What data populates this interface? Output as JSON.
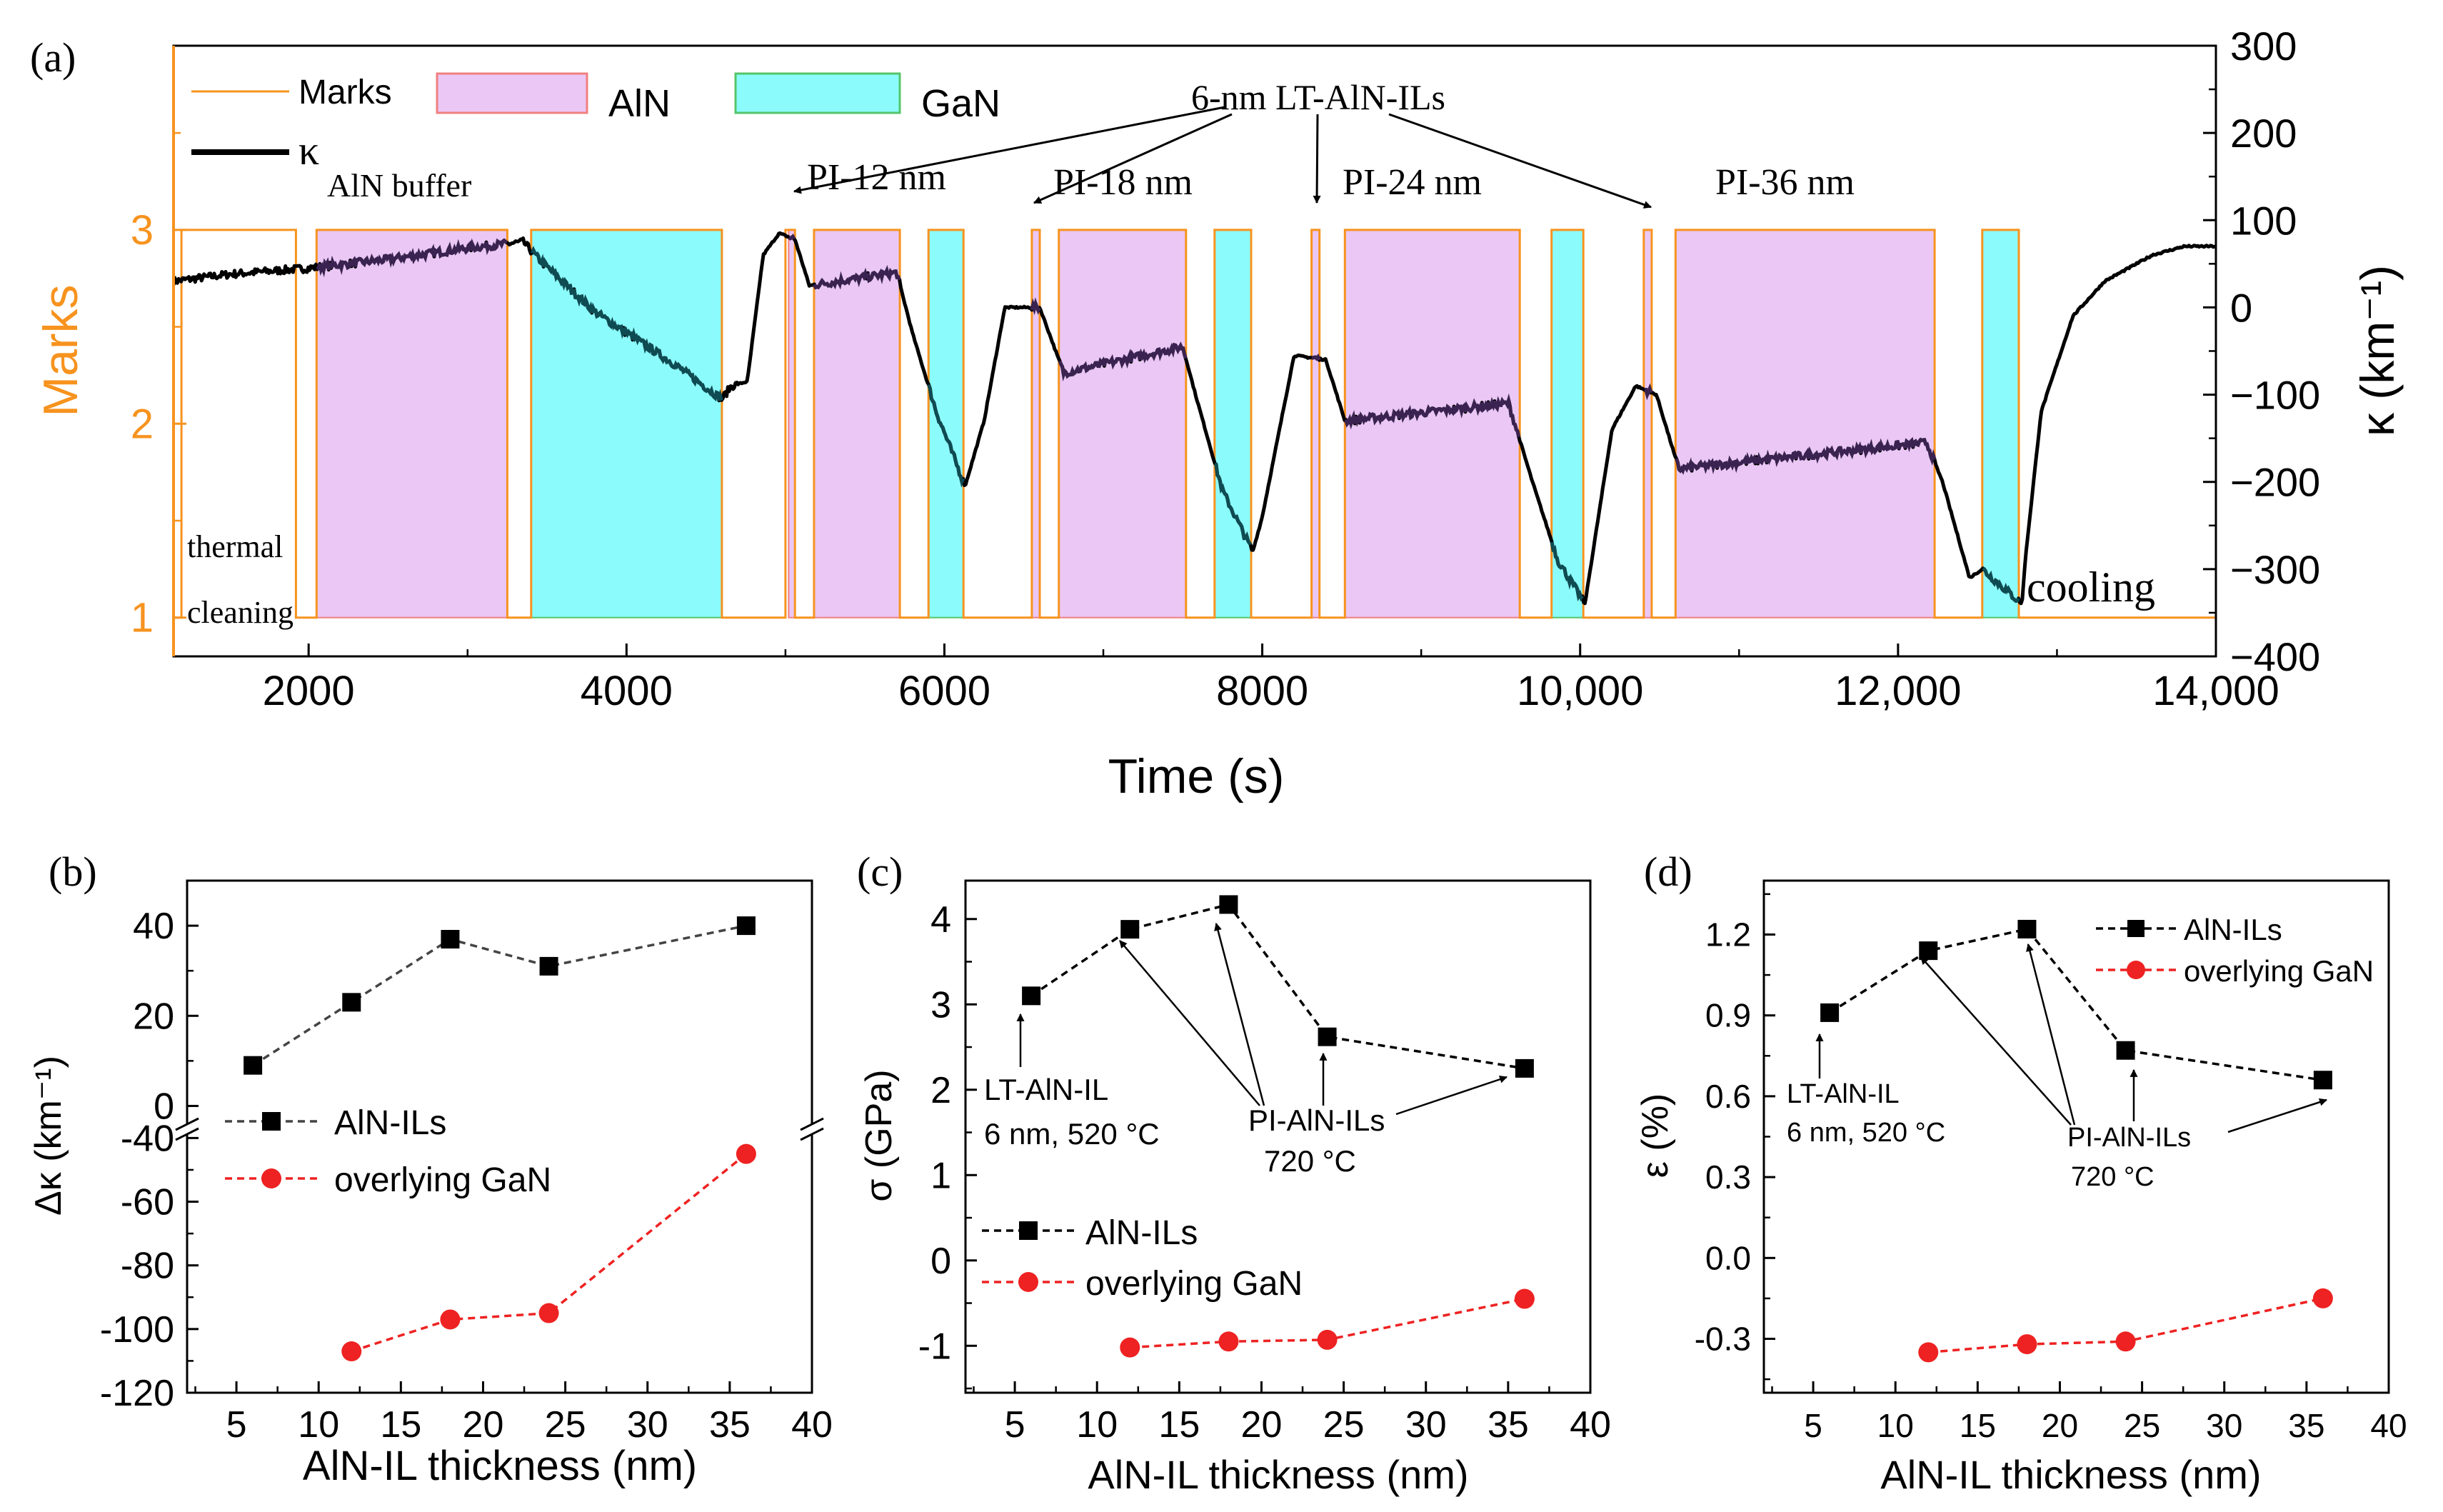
{
  "colors": {
    "orange": "#f7931e",
    "aln_fill": "#eac7f5",
    "aln_edge": "#f08080",
    "gan_fill": "#8cfbfb",
    "gan_edge": "#55c46a",
    "black": "#000000",
    "grey_series": "#444444",
    "red_series": "#ee2222",
    "in_aln": "#3a2350",
    "in_gan": "#0f4b52"
  },
  "chart_data": [
    {
      "id": "a",
      "type": "line",
      "panel_label": "(a)",
      "xlabel": "Time (s)",
      "ylabel_left": "Marks",
      "ylabel_right": "κ (km⁻¹)",
      "xlim": [
        1150,
        14000
      ],
      "ylim_left": [
        0.8,
        3.95
      ],
      "ylim_right": [
        -400,
        300
      ],
      "x_ticks": [
        2000,
        4000,
        6000,
        8000,
        10000,
        12000,
        14000
      ],
      "x_tick_labels": [
        "2000",
        "4000",
        "6000",
        "8000",
        "10,000",
        "12,000",
        "14,000"
      ],
      "y_left_ticks": [
        1,
        2,
        3
      ],
      "y_left_tick_labels": [
        "1",
        "2",
        "3"
      ],
      "y_right_ticks": [
        300,
        200,
        100,
        0,
        -100,
        -200,
        -300,
        -400
      ],
      "y_right_tick_labels": [
        "300",
        "200",
        "100",
        "0",
        "−100",
        "−200",
        "−300",
        "−400"
      ],
      "legend": {
        "marks": "Marks",
        "aln": "AlN",
        "gan": "GaN",
        "kappa": "κ"
      },
      "regions_aln": [
        [
          2050,
          3250
        ],
        [
          5020,
          5060
        ],
        [
          5180,
          5720
        ],
        [
          6550,
          6600
        ],
        [
          6720,
          7520
        ],
        [
          8310,
          8360
        ],
        [
          8520,
          9620
        ],
        [
          10400,
          10450
        ],
        [
          10600,
          12230
        ]
      ],
      "regions_gan": [
        [
          3400,
          4600
        ],
        [
          5900,
          6120
        ],
        [
          7700,
          7930
        ],
        [
          9820,
          10020
        ],
        [
          12530,
          12760
        ]
      ],
      "marks_steps": [
        [
          1150,
          1
        ],
        [
          1200,
          1
        ],
        [
          1200,
          3
        ],
        [
          1920,
          3
        ],
        [
          1920,
          1
        ],
        [
          2050,
          1
        ],
        [
          2050,
          3
        ],
        [
          3250,
          3
        ],
        [
          3250,
          1
        ],
        [
          3400,
          1
        ],
        [
          3400,
          3
        ],
        [
          4600,
          3
        ],
        [
          4600,
          1
        ],
        [
          5000,
          1
        ],
        [
          5000,
          3
        ],
        [
          5060,
          3
        ],
        [
          5060,
          1
        ],
        [
          5180,
          1
        ],
        [
          5180,
          3
        ],
        [
          5720,
          3
        ],
        [
          5720,
          1
        ],
        [
          5900,
          1
        ],
        [
          5900,
          3
        ],
        [
          6120,
          3
        ],
        [
          6120,
          1
        ],
        [
          6550,
          1
        ],
        [
          6550,
          3
        ],
        [
          6600,
          3
        ],
        [
          6600,
          1
        ],
        [
          6720,
          1
        ],
        [
          6720,
          3
        ],
        [
          7520,
          3
        ],
        [
          7520,
          1
        ],
        [
          7700,
          1
        ],
        [
          7700,
          3
        ],
        [
          7930,
          3
        ],
        [
          7930,
          1
        ],
        [
          8310,
          1
        ],
        [
          8310,
          3
        ],
        [
          8360,
          3
        ],
        [
          8360,
          1
        ],
        [
          8520,
          1
        ],
        [
          8520,
          3
        ],
        [
          9620,
          3
        ],
        [
          9620,
          1
        ],
        [
          9820,
          1
        ],
        [
          9820,
          3
        ],
        [
          10020,
          3
        ],
        [
          10020,
          1
        ],
        [
          10400,
          1
        ],
        [
          10400,
          3
        ],
        [
          10450,
          3
        ],
        [
          10450,
          1
        ],
        [
          10600,
          1
        ],
        [
          10600,
          3
        ],
        [
          12230,
          3
        ],
        [
          12230,
          1
        ],
        [
          12530,
          1
        ],
        [
          12530,
          3
        ],
        [
          12760,
          3
        ],
        [
          12760,
          1
        ],
        [
          14000,
          1
        ]
      ],
      "kappa_curve": [
        [
          1150,
          30
        ],
        [
          1500,
          38
        ],
        [
          2000,
          45
        ],
        [
          2500,
          55
        ],
        [
          3000,
          68
        ],
        [
          3350,
          75
        ],
        [
          3450,
          55
        ],
        [
          3800,
          -5
        ],
        [
          4300,
          -65
        ],
        [
          4600,
          -105
        ],
        [
          4660,
          -90
        ],
        [
          4760,
          -85
        ],
        [
          4860,
          60
        ],
        [
          4960,
          85
        ],
        [
          5060,
          78
        ],
        [
          5150,
          25
        ],
        [
          5700,
          40
        ],
        [
          5800,
          -30
        ],
        [
          5950,
          -120
        ],
        [
          6130,
          -205
        ],
        [
          6250,
          -130
        ],
        [
          6380,
          0
        ],
        [
          6600,
          0
        ],
        [
          6750,
          -75
        ],
        [
          7500,
          -45
        ],
        [
          7580,
          -100
        ],
        [
          7750,
          -210
        ],
        [
          7940,
          -280
        ],
        [
          8000,
          -240
        ],
        [
          8200,
          -55
        ],
        [
          8400,
          -60
        ],
        [
          8520,
          -130
        ],
        [
          9550,
          -110
        ],
        [
          9700,
          -200
        ],
        [
          9860,
          -290
        ],
        [
          10030,
          -340
        ],
        [
          10200,
          -140
        ],
        [
          10350,
          -90
        ],
        [
          10480,
          -100
        ],
        [
          10620,
          -185
        ],
        [
          12180,
          -155
        ],
        [
          12280,
          -200
        ],
        [
          12450,
          -310
        ],
        [
          12530,
          -300
        ],
        [
          12780,
          -340
        ],
        [
          12800,
          -290
        ],
        [
          12900,
          -120
        ],
        [
          13100,
          -10
        ],
        [
          13300,
          30
        ],
        [
          13600,
          60
        ],
        [
          13800,
          70
        ],
        [
          14000,
          70
        ]
      ],
      "annotations": {
        "thermal_1": "thermal",
        "thermal_2": "cleaning",
        "aln_buffer": "AlN buffer",
        "lt_label": "6-nm LT-AlN-ILs",
        "pi12": "PI-12 nm",
        "pi18": "PI-18 nm",
        "pi24": "PI-24 nm",
        "pi36": "PI-36 nm",
        "cooling": "cooling"
      }
    },
    {
      "id": "b",
      "type": "line",
      "panel_label": "(b)",
      "xlabel": "AlN-IL thickness (nm)",
      "ylabel": "Δκ (km⁻¹)",
      "xlim": [
        2,
        40
      ],
      "ylim_upper": [
        -5,
        50
      ],
      "ylim_lower": [
        -120,
        -37
      ],
      "x_ticks": [
        5,
        10,
        15,
        20,
        25,
        30,
        35,
        40
      ],
      "y_upper_ticks": [
        0,
        20,
        40
      ],
      "y_lower_ticks": [
        -40,
        -60,
        -80,
        -100,
        -120
      ],
      "y_lower_tick_labels": [
        "-40",
        "-60",
        "-80",
        "-100",
        "-120"
      ],
      "series": [
        {
          "name": "AlN-ILs",
          "x": [
            6,
            12,
            18,
            24,
            36
          ],
          "values": [
            9,
            23,
            37,
            31,
            40
          ]
        },
        {
          "name": "overlying GaN",
          "x": [
            12,
            18,
            24,
            36
          ],
          "values": [
            -107,
            -97,
            -95,
            -45
          ]
        }
      ]
    },
    {
      "id": "c",
      "type": "line",
      "panel_label": "(c)",
      "xlabel": "AlN-IL thickness (nm)",
      "ylabel": "σ (GPa)",
      "xlim": [
        2,
        40
      ],
      "ylim": [
        -1.55,
        4.45
      ],
      "x_ticks": [
        5,
        10,
        15,
        20,
        25,
        30,
        35,
        40
      ],
      "y_ticks": [
        -1,
        0,
        1,
        2,
        3,
        4
      ],
      "series": [
        {
          "name": "AlN-ILs",
          "x": [
            6,
            12,
            18,
            24,
            36
          ],
          "values": [
            3.1,
            3.88,
            4.17,
            2.62,
            2.25
          ]
        },
        {
          "name": "overlying GaN",
          "x": [
            12,
            18,
            24,
            36
          ],
          "values": [
            -1.02,
            -0.95,
            -0.93,
            -0.45
          ]
        }
      ],
      "annotations": {
        "lt_1": "LT-AlN-IL",
        "lt_2": "6 nm, 520 °C",
        "pi_1": "PI-AlN-ILs",
        "pi_2": "720 °C"
      }
    },
    {
      "id": "d",
      "type": "line",
      "panel_label": "(d)",
      "xlabel": "AlN-IL thickness (nm)",
      "ylabel": "ε (%)",
      "xlim": [
        2,
        40
      ],
      "ylim": [
        -0.5,
        1.4
      ],
      "x_ticks": [
        5,
        10,
        15,
        20,
        25,
        30,
        35,
        40
      ],
      "y_ticks": [
        -0.3,
        0.0,
        0.3,
        0.6,
        0.9,
        1.2
      ],
      "y_tick_labels": [
        "-0.3",
        "0.0",
        "0.3",
        "0.6",
        "0.9",
        "1.2"
      ],
      "series": [
        {
          "name": "AlN-ILs",
          "x": [
            6,
            12,
            18,
            24,
            36
          ],
          "values": [
            0.91,
            1.14,
            1.22,
            0.77,
            0.66
          ]
        },
        {
          "name": "overlying GaN",
          "x": [
            12,
            18,
            24,
            36
          ],
          "values": [
            -0.35,
            -0.32,
            -0.31,
            -0.15
          ]
        }
      ],
      "annotations": {
        "lt_1": "LT-AlN-IL",
        "lt_2": "6 nm, 520 °C",
        "pi_1": "PI-AlN-ILs",
        "pi_2": "720 °C"
      }
    }
  ]
}
